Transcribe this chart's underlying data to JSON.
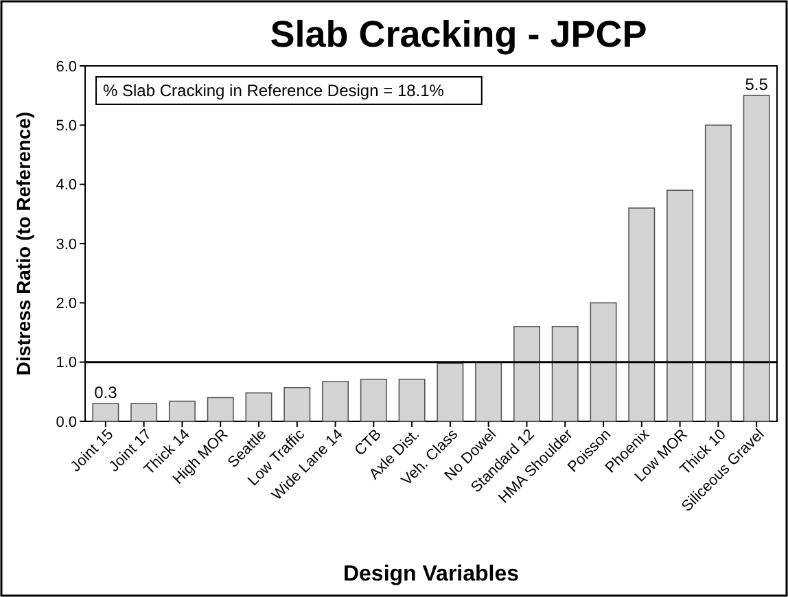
{
  "chart_data": {
    "type": "bar",
    "title": "Slab Cracking - JPCP",
    "xlabel": "Design Variables",
    "ylabel": "Distress Ratio (to Reference)",
    "annotations": [
      "% Slab Cracking in Reference Design = 18.1%"
    ],
    "categories": [
      "Joint 15",
      "Joint 17",
      "Thick 14",
      "High MOR",
      "Seattle",
      "Low Traffic",
      "Wide Lane 14",
      "CTB",
      "Axle Dist.",
      "Veh. Class",
      "No Dowel",
      "Standard 12",
      "HMA Shoulder",
      "Poisson",
      "Phoenix",
      "Low MOR",
      "Thick 10",
      "Siliceous Gravel"
    ],
    "values": [
      0.3,
      0.3,
      0.34,
      0.4,
      0.48,
      0.57,
      0.67,
      0.71,
      0.71,
      0.98,
      1.0,
      1.6,
      1.6,
      2.0,
      3.6,
      3.9,
      5.0,
      5.5
    ],
    "value_labels": [
      "0.3",
      null,
      null,
      null,
      null,
      null,
      null,
      null,
      null,
      null,
      null,
      null,
      null,
      null,
      null,
      null,
      null,
      "5.5"
    ],
    "color": "#d4d4d4",
    "ylim": [
      0,
      6
    ],
    "yticks": [
      {
        "value": 0,
        "label": "0.0"
      },
      {
        "value": 1,
        "label": "1.0"
      },
      {
        "value": 2,
        "label": "2.0"
      },
      {
        "value": 3,
        "label": "3.0"
      },
      {
        "value": 4,
        "label": "4.0"
      },
      {
        "value": 5,
        "label": "5.0"
      },
      {
        "value": 6,
        "label": "6.0"
      }
    ],
    "ref_lines": [
      {
        "axis": "y",
        "value": 1,
        "color": "#000000"
      }
    ],
    "grid": false
  }
}
